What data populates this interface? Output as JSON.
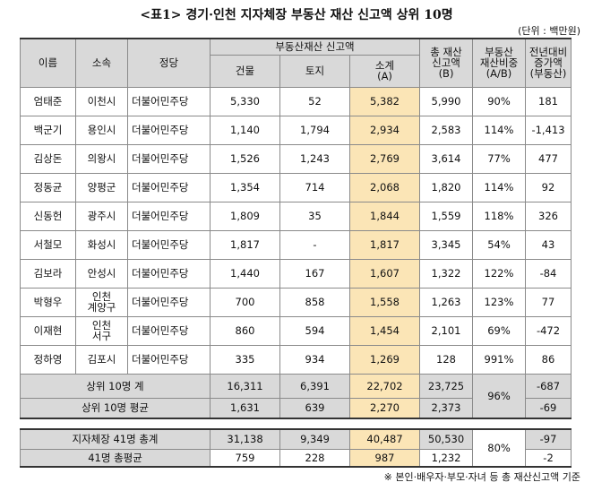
{
  "title": "<표1> 경기·인천 지자체장 부동산 재산 신고액 상위 10명",
  "unit": "(단위 : 백만원)",
  "headers": {
    "name": "이름",
    "affil": "소속",
    "party": "정당",
    "group": "부동산재산 신고액",
    "building": "건물",
    "land": "토지",
    "subtotal": "소계\n(A)",
    "total": "총 재산\n신고액\n(B)",
    "ratio": "부동산\n재산비중\n(A/B)",
    "change": "전년대비\n증가액\n(부동산)"
  },
  "rows": [
    {
      "name": "엄태준",
      "affil": "이천시",
      "party": "더불어민주당",
      "building": "5,330",
      "land": "52",
      "subtotal": "5,382",
      "total": "5,990",
      "ratio": "90%",
      "change": "181"
    },
    {
      "name": "백군기",
      "affil": "용인시",
      "party": "더불어민주당",
      "building": "1,140",
      "land": "1,794",
      "subtotal": "2,934",
      "total": "2,583",
      "ratio": "114%",
      "change": "-1,413"
    },
    {
      "name": "김상돈",
      "affil": "의왕시",
      "party": "더불어민주당",
      "building": "1,526",
      "land": "1,243",
      "subtotal": "2,769",
      "total": "3,614",
      "ratio": "77%",
      "change": "477"
    },
    {
      "name": "정동균",
      "affil": "양평군",
      "party": "더불어민주당",
      "building": "1,354",
      "land": "714",
      "subtotal": "2,068",
      "total": "1,820",
      "ratio": "114%",
      "change": "92"
    },
    {
      "name": "신동헌",
      "affil": "광주시",
      "party": "더불어민주당",
      "building": "1,809",
      "land": "35",
      "subtotal": "1,844",
      "total": "1,559",
      "ratio": "118%",
      "change": "326"
    },
    {
      "name": "서철모",
      "affil": "화성시",
      "party": "더불어민주당",
      "building": "1,817",
      "land": "-",
      "subtotal": "1,817",
      "total": "3,345",
      "ratio": "54%",
      "change": "43"
    },
    {
      "name": "김보라",
      "affil": "안성시",
      "party": "더불어민주당",
      "building": "1,440",
      "land": "167",
      "subtotal": "1,607",
      "total": "1,322",
      "ratio": "122%",
      "change": "-84"
    },
    {
      "name": "박형우",
      "affil": "인천\n계양구",
      "party": "더불어민주당",
      "building": "700",
      "land": "858",
      "subtotal": "1,558",
      "total": "1,263",
      "ratio": "123%",
      "change": "77"
    },
    {
      "name": "이재현",
      "affil": "인천\n서구",
      "party": "더불어민주당",
      "building": "860",
      "land": "594",
      "subtotal": "1,454",
      "total": "2,101",
      "ratio": "69%",
      "change": "-472"
    },
    {
      "name": "정하영",
      "affil": "김포시",
      "party": "더불어민주당",
      "building": "335",
      "land": "934",
      "subtotal": "1,269",
      "total": "128",
      "ratio": "991%",
      "change": "86"
    }
  ],
  "summary": [
    {
      "label": "상위 10명 계",
      "building": "16,311",
      "land": "6,391",
      "subtotal": "22,702",
      "total": "23,725",
      "ratio": "96%",
      "change": "-687"
    },
    {
      "label": "상위 10명 평균",
      "building": "1,631",
      "land": "639",
      "subtotal": "2,270",
      "total": "2,373",
      "change": "-69"
    }
  ],
  "bottom": [
    {
      "label": "지자체장 41명 총계",
      "building": "31,138",
      "land": "9,349",
      "subtotal": "40,487",
      "total": "50,530",
      "ratio": "80%",
      "change": "-97"
    },
    {
      "label": "41명 총평균",
      "building": "759",
      "land": "228",
      "subtotal": "987",
      "total": "1,232",
      "change": "-2"
    }
  ],
  "note": "※ 본인·배우자·부모·자녀 등 총 재산신고액 기준",
  "colors": {
    "header": "#d9d9d9",
    "highlight": "#fbe5b6"
  }
}
